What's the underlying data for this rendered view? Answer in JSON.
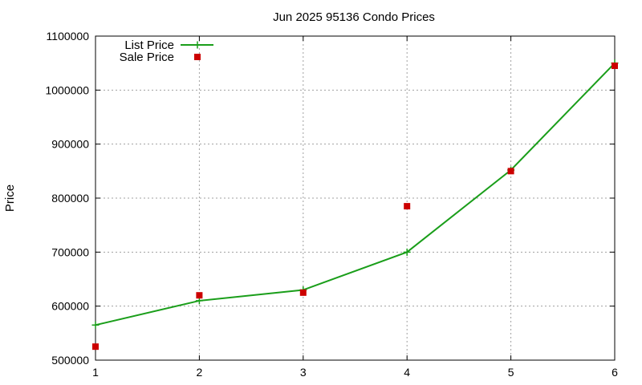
{
  "chart_data": {
    "type": "line",
    "title": "Jun 2025 95136 Condo Prices",
    "xlabel": "",
    "ylabel": "Price",
    "x": [
      1,
      2,
      3,
      4,
      5,
      6
    ],
    "xlim": [
      1,
      6
    ],
    "ylim": [
      500000,
      1100000
    ],
    "x_ticks": [
      "1",
      "2",
      "3",
      "4",
      "5",
      "6"
    ],
    "y_ticks": [
      "500000",
      "600000",
      "700000",
      "800000",
      "900000",
      "1000000",
      "1100000"
    ],
    "y_tick_values": [
      500000,
      600000,
      700000,
      800000,
      900000,
      1000000,
      1100000
    ],
    "grid": true,
    "legend_position": "top-left",
    "series": [
      {
        "name": "List Price",
        "style": "line-with-plus-markers",
        "color": "#1a9e1a",
        "x": [
          1,
          2,
          3,
          4,
          5,
          6
        ],
        "values": [
          565000,
          610000,
          630000,
          700000,
          852000,
          1050000
        ]
      },
      {
        "name": "Sale Price",
        "style": "square-markers",
        "color": "#cc0000",
        "x": [
          1,
          2,
          3,
          4,
          5,
          6
        ],
        "values": [
          525000,
          620000,
          625000,
          785000,
          850000,
          1045000
        ]
      }
    ]
  }
}
